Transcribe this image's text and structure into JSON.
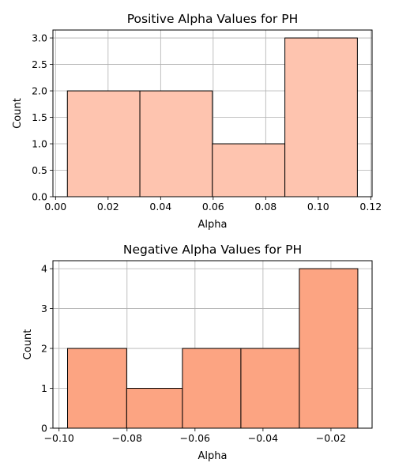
{
  "chart_data": [
    {
      "type": "bar",
      "title": "Positive Alpha Values for PH",
      "xlabel": "Alpha",
      "ylabel": "Count",
      "bins": [
        {
          "x0": 0.0045,
          "x1": 0.0321,
          "value": 2
        },
        {
          "x0": 0.0321,
          "x1": 0.0597,
          "value": 2
        },
        {
          "x0": 0.0597,
          "x1": 0.0873,
          "value": 1
        },
        {
          "x0": 0.0873,
          "x1": 0.1149,
          "value": 3
        }
      ],
      "xlim": [
        -0.001,
        0.1205
      ],
      "ylim": [
        0,
        3.15
      ],
      "x_ticks": [
        0.0,
        0.02,
        0.04,
        0.06,
        0.08,
        0.1,
        0.12
      ],
      "x_tick_labels": [
        "0.00",
        "0.02",
        "0.04",
        "0.06",
        "0.08",
        "0.10",
        "0.12"
      ],
      "y_ticks": [
        0.0,
        0.5,
        1.0,
        1.5,
        2.0,
        2.5,
        3.0
      ],
      "y_tick_labels": [
        "0.0",
        "0.5",
        "1.0",
        "1.5",
        "2.0",
        "2.5",
        "3.0"
      ],
      "grid": true,
      "bar_color": "#fec4af",
      "edge_color": "#000000"
    },
    {
      "type": "bar",
      "title": "Negative Alpha Values for PH",
      "xlabel": "Alpha",
      "ylabel": "Count",
      "bins": [
        {
          "x0": -0.0975,
          "x1": -0.0801,
          "value": 2
        },
        {
          "x0": -0.0801,
          "x1": -0.0637,
          "value": 1
        },
        {
          "x0": -0.0637,
          "x1": -0.0465,
          "value": 2
        },
        {
          "x0": -0.0465,
          "x1": -0.0293,
          "value": 2
        },
        {
          "x0": -0.0293,
          "x1": -0.0121,
          "value": 4
        }
      ],
      "xlim": [
        -0.1018,
        -0.0079
      ],
      "ylim": [
        0,
        4.2
      ],
      "x_ticks": [
        -0.1,
        -0.08,
        -0.06,
        -0.04,
        -0.02
      ],
      "x_tick_labels": [
        "−0.10",
        "−0.08",
        "−0.06",
        "−0.04",
        "−0.02"
      ],
      "y_ticks": [
        0,
        1,
        2,
        3,
        4
      ],
      "y_tick_labels": [
        "0",
        "1",
        "2",
        "3",
        "4"
      ],
      "grid": true,
      "bar_color": "#fca482",
      "edge_color": "#000000"
    }
  ]
}
